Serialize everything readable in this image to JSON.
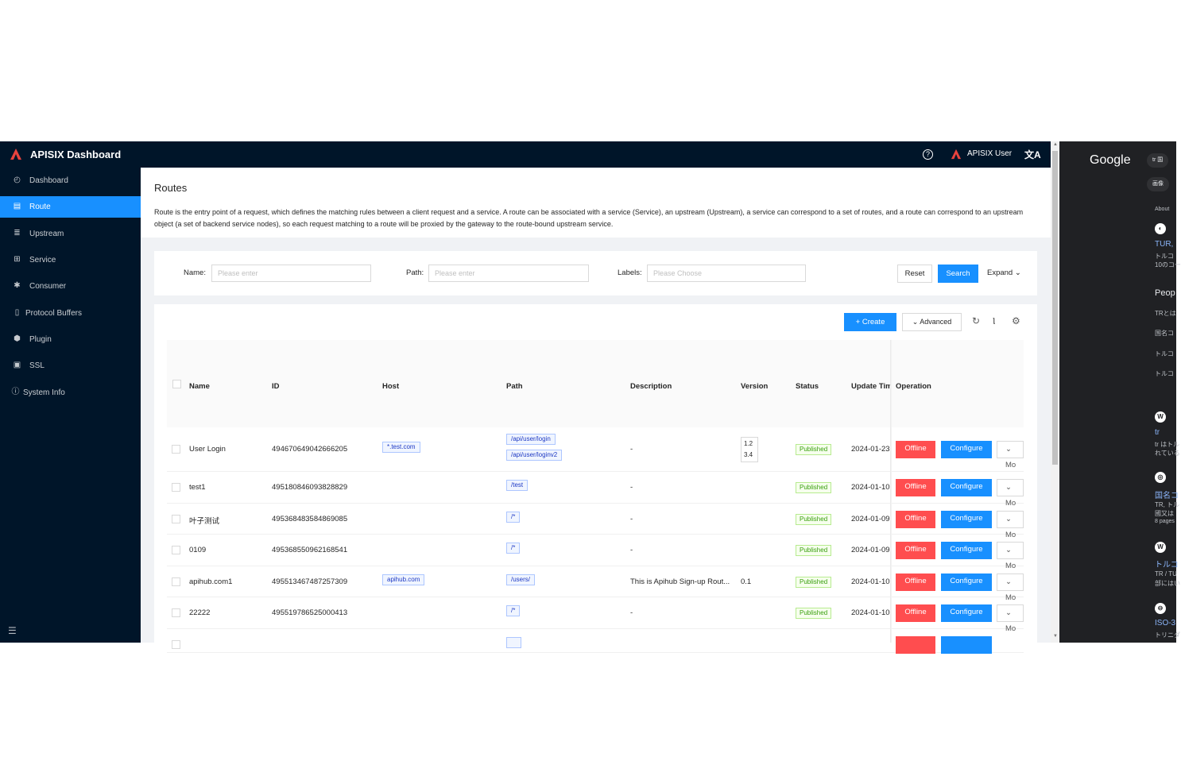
{
  "header": {
    "brand": "APISIX Dashboard",
    "user_name": "APISIX User",
    "help_glyph": "?",
    "lang_glyph": "文A"
  },
  "sidebar": {
    "items": [
      {
        "label": "Dashboard",
        "icon": "dashboard-icon",
        "glyph": "◴"
      },
      {
        "label": "Route",
        "icon": "route-icon",
        "glyph": "▤"
      },
      {
        "label": "Upstream",
        "icon": "upstream-icon",
        "glyph": "≣"
      },
      {
        "label": "Service",
        "icon": "service-icon",
        "glyph": "⊞"
      },
      {
        "label": "Consumer",
        "icon": "consumer-icon",
        "glyph": "✱"
      },
      {
        "label": "Protocol Buffers",
        "icon": "file-icon",
        "glyph": "▯"
      },
      {
        "label": "Plugin",
        "icon": "plugin-icon",
        "glyph": "⬢"
      },
      {
        "label": "SSL",
        "icon": "ssl-icon",
        "glyph": "▣"
      },
      {
        "label": "System Info",
        "icon": "info-icon",
        "glyph": "ⓘ"
      }
    ],
    "collapse_glyph": "☰"
  },
  "page": {
    "title": "Routes",
    "description": "Route is the entry point of a request, which defines the matching rules between a client request and a service. A route can be associated with a service (Service), an upstream (Upstream), a service can correspond to a set of routes, and a route can correspond to an upstream object (a set of backend service nodes), so each request matching to a route will be proxied by the gateway to the route-bound upstream service."
  },
  "search": {
    "name_label": "Name",
    "name_placeholder": "Please enter",
    "path_label": "Path",
    "path_placeholder": "Please enter",
    "labels_label": "Labels",
    "labels_placeholder": "Please Choose",
    "reset": "Reset",
    "search": "Search",
    "expand": "Expand"
  },
  "toolbar": {
    "create": "Create",
    "advanced": "Advanced"
  },
  "table": {
    "columns": [
      "Name",
      "ID",
      "Host",
      "Path",
      "Description",
      "Version",
      "Status",
      "Update Tim",
      "Operation"
    ],
    "rows": [
      {
        "name": "User Login",
        "id": "494670649042666205",
        "host": "*.test.com",
        "paths": [
          "/api/user/login",
          "/api/user/loginv2"
        ],
        "description": "-",
        "version": [
          "1.2",
          "3.4"
        ],
        "status": "Published",
        "updated": "2024-01-23"
      },
      {
        "name": "test1",
        "id": "495180846093828829",
        "host": "",
        "paths": [
          "/test"
        ],
        "description": "-",
        "version": [],
        "status": "Published",
        "updated": "2024-01-10"
      },
      {
        "name": "叶子测试",
        "id": "495368483584869085",
        "host": "",
        "paths": [
          "/*"
        ],
        "description": "-",
        "version": [],
        "status": "Published",
        "updated": "2024-01-09"
      },
      {
        "name": "0109",
        "id": "495368550962168541",
        "host": "",
        "paths": [
          "/*"
        ],
        "description": "-",
        "version": [],
        "status": "Published",
        "updated": "2024-01-09"
      },
      {
        "name": "apihub.com1",
        "id": "495513467487257309",
        "host": "apihub.com",
        "paths": [
          "/users/"
        ],
        "description": "This is Apihub Sign-up Rout...",
        "version": [
          "0.1"
        ],
        "status": "Published",
        "updated": "2024-01-10"
      },
      {
        "name": "22222",
        "id": "495519786525000413",
        "host": "",
        "paths": [
          "/*"
        ],
        "description": "-",
        "version": [],
        "status": "Published",
        "updated": "2024-01-10"
      }
    ],
    "op_offline": "Offline",
    "op_configure": "Configure",
    "op_more": "Mo"
  },
  "google": {
    "logo": "Google",
    "pill1": "tr 国",
    "pill2": "画像",
    "about": "About",
    "link1": "TUR,",
    "text1": "トルコ",
    "text2": "10のコー",
    "people_head": "Peop",
    "q1": "TRとは",
    "q2": "国名コ",
    "q3": "トルコ",
    "q4": "トルコ",
    "tr": "tr",
    "tr_text1": "tr はトル",
    "tr_text2": "れている",
    "kokumei": "国名コ",
    "tr_tu": "TR, トル",
    "kuni": "國又は",
    "pages": "8 pages",
    "toruko": "トルコ",
    "trtu": "TR / TU",
    "bu": "部にはい",
    "iso": "ISO-3",
    "toriji": "トリニダ"
  }
}
